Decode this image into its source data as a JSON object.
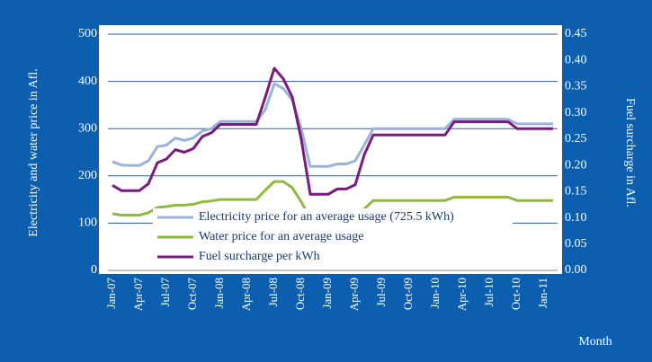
{
  "chart_data": {
    "type": "line",
    "y_label": "Electricity and water price in Afl.",
    "y2_label": "Fuel surcharge in Afl.",
    "x_label": "Month",
    "categories": [
      "Jan-07",
      null,
      null,
      "Apr-07",
      null,
      null,
      "Jul-07",
      null,
      null,
      "Oct-07",
      null,
      null,
      "Jan-08",
      null,
      null,
      "Apr-08",
      null,
      null,
      "Jul-08",
      null,
      null,
      "Oct-08",
      null,
      null,
      "Jan-09",
      null,
      null,
      "Apr-09",
      null,
      null,
      "Jul-09",
      null,
      null,
      "Oct-09",
      null,
      null,
      "Jan-10",
      null,
      null,
      "Apr-10",
      null,
      null,
      "Jul-10",
      null,
      null,
      "Oct-10",
      null,
      null,
      "Jan-11",
      null
    ],
    "series": [
      {
        "name": "Electricity price for an average usage (725.5 kWh)",
        "color": "#9bb3d6",
        "values": [
          230,
          223,
          222,
          222,
          232,
          262,
          265,
          280,
          275,
          280,
          295,
          300,
          315,
          315,
          315,
          315,
          315,
          340,
          395,
          385,
          360,
          300,
          220,
          220,
          220,
          225,
          225,
          232,
          265,
          300,
          300,
          300,
          300,
          300,
          300,
          300,
          300,
          300,
          320,
          320,
          320,
          320,
          320,
          320,
          320,
          310,
          310,
          310,
          310,
          310
        ]
      },
      {
        "name": "Water price for an average usage",
        "color": "#8fba3c",
        "values": [
          120,
          117,
          117,
          117,
          122,
          133,
          135,
          138,
          138,
          140,
          145,
          147,
          150,
          150,
          150,
          150,
          150,
          170,
          188,
          188,
          175,
          145,
          110,
          105,
          105,
          108,
          110,
          112,
          130,
          148,
          148,
          148,
          148,
          148,
          148,
          148,
          148,
          148,
          155,
          155,
          155,
          155,
          155,
          155,
          155,
          148,
          148,
          148,
          148,
          148
        ]
      },
      {
        "name": "Fuel surcharge per kWh",
        "color": "#7b1a7e",
        "axis": "y2",
        "values": [
          0.162,
          0.152,
          0.152,
          0.152,
          0.165,
          0.205,
          0.212,
          0.23,
          0.225,
          0.232,
          0.255,
          0.262,
          0.278,
          0.278,
          0.278,
          0.278,
          0.278,
          0.33,
          0.385,
          0.365,
          0.33,
          0.25,
          0.145,
          0.145,
          0.145,
          0.155,
          0.155,
          0.163,
          0.22,
          0.258,
          0.258,
          0.258,
          0.258,
          0.258,
          0.258,
          0.258,
          0.258,
          0.258,
          0.283,
          0.283,
          0.283,
          0.283,
          0.283,
          0.283,
          0.283,
          0.27,
          0.27,
          0.27,
          0.27,
          0.27
        ]
      }
    ],
    "ylim": [
      0,
      500
    ],
    "yticks": [
      0,
      100,
      200,
      300,
      400,
      500
    ],
    "y2lim": [
      0,
      0.45
    ],
    "y2ticks": [
      {
        "value": 0,
        "label": "0.00"
      },
      {
        "value": 0.05,
        "label": "0.05"
      },
      {
        "value": 0.1,
        "label": "0.10"
      },
      {
        "value": 0.15,
        "label": "0.15"
      },
      {
        "value": 0.2,
        "label": "0.20"
      },
      {
        "value": 0.25,
        "label": "0.25"
      },
      {
        "value": 0.3,
        "label": "0.30"
      },
      {
        "value": 0.35,
        "label": "0.35"
      },
      {
        "value": 0.4,
        "label": "0.40"
      },
      {
        "value": 0.45,
        "label": "0.45"
      }
    ],
    "grid": true
  }
}
